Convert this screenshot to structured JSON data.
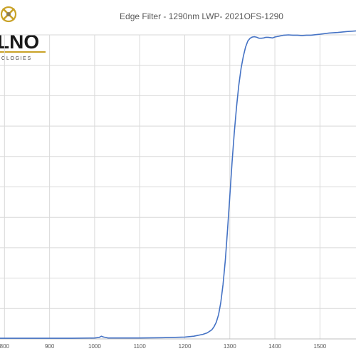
{
  "logo": {
    "wordmark": "LNO",
    "tagline": "OLOGIES",
    "accent_color": "#c9a227"
  },
  "chart_data": {
    "type": "line",
    "title": "Edge Filter - 1290nm LWP- 2021OFS-1290",
    "xlabel": "",
    "ylabel": "",
    "xlim": [
      790,
      1580
    ],
    "ylim": [
      0,
      100
    ],
    "x_ticks": [
      800,
      900,
      1000,
      1100,
      1200,
      1300,
      1400,
      1500
    ],
    "y_gridlines": 10,
    "grid": true,
    "legend": "none",
    "colors": {
      "line": "#4472c4",
      "grid": "#d9d9d9",
      "axis": "#bfbfbf"
    },
    "series": [
      {
        "x": [
          790,
          850,
          900,
          950,
          1000,
          1010,
          1015,
          1020,
          1030,
          1050,
          1100,
          1150,
          1200,
          1220,
          1240,
          1250,
          1260,
          1265,
          1270,
          1275,
          1280,
          1285,
          1290,
          1295,
          1300,
          1305,
          1310,
          1315,
          1320,
          1325,
          1330,
          1335,
          1340,
          1345,
          1350,
          1355,
          1360,
          1365,
          1370,
          1375,
          1380,
          1385,
          1390,
          1395,
          1400,
          1410,
          1420,
          1430,
          1440,
          1450,
          1460,
          1470,
          1480,
          1500,
          1520,
          1540,
          1560,
          1580
        ],
        "y": [
          0.2,
          0.2,
          0.2,
          0.2,
          0.3,
          0.5,
          0.9,
          0.6,
          0.3,
          0.3,
          0.3,
          0.4,
          0.6,
          0.9,
          1.5,
          2.0,
          3.0,
          4.0,
          5.5,
          8.0,
          12.0,
          18.0,
          26.0,
          36.0,
          47.0,
          58.0,
          68.0,
          76.5,
          83.5,
          89.0,
          93.0,
          96.0,
          98.0,
          98.9,
          99.3,
          99.4,
          99.2,
          98.9,
          98.9,
          99.0,
          99.2,
          99.2,
          99.1,
          99.0,
          99.3,
          99.6,
          99.9,
          100.0,
          99.9,
          99.9,
          99.8,
          99.9,
          99.9,
          100.2,
          100.6,
          100.8,
          101.1,
          101.3
        ]
      }
    ]
  }
}
